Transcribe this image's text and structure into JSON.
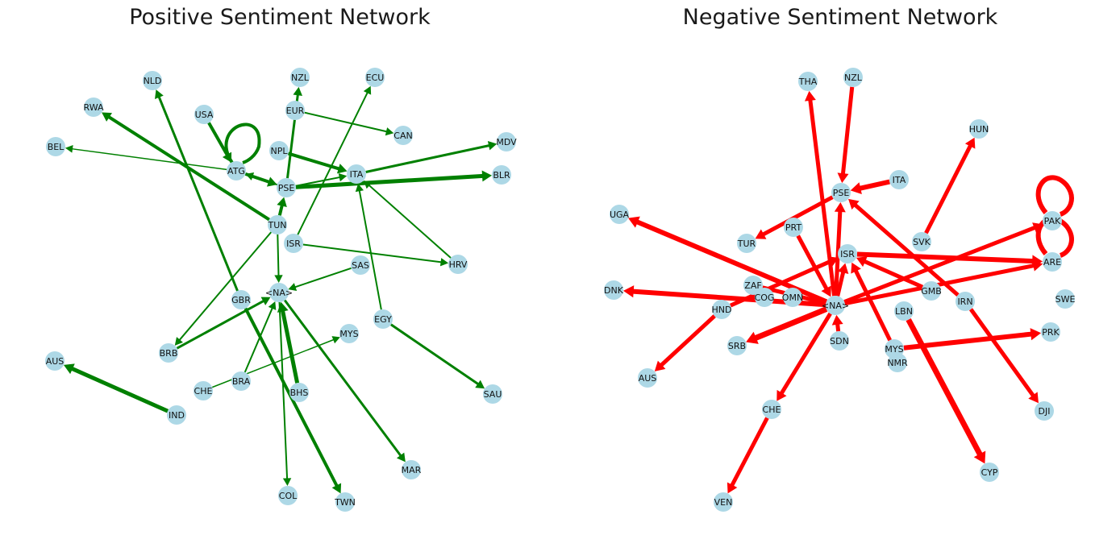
{
  "left": {
    "title": "Positive Sentiment Network",
    "color": "#008000",
    "node_fill": "#add8e6",
    "nodes": [
      {
        "id": "NLD"
      },
      {
        "id": "RWA"
      },
      {
        "id": "BEL"
      },
      {
        "id": "USA"
      },
      {
        "id": "NZL"
      },
      {
        "id": "ECU"
      },
      {
        "id": "EUR"
      },
      {
        "id": "CAN"
      },
      {
        "id": "MDV"
      },
      {
        "id": "NPL"
      },
      {
        "id": "ATG"
      },
      {
        "id": "ITA"
      },
      {
        "id": "BLR"
      },
      {
        "id": "PSE"
      },
      {
        "id": "TUN"
      },
      {
        "id": "ISR"
      },
      {
        "id": "HRV"
      },
      {
        "id": "SAS"
      },
      {
        "id": "<NA>"
      },
      {
        "id": "GBR"
      },
      {
        "id": "EGY"
      },
      {
        "id": "BRB"
      },
      {
        "id": "MYS"
      },
      {
        "id": "AUS"
      },
      {
        "id": "CHE"
      },
      {
        "id": "BRA"
      },
      {
        "id": "BHS"
      },
      {
        "id": "SAU"
      },
      {
        "id": "IND"
      },
      {
        "id": "MAR"
      },
      {
        "id": "COL"
      },
      {
        "id": "TWN"
      }
    ],
    "edges": [
      {
        "source": "USA",
        "target": "ATG",
        "weight": 4
      },
      {
        "source": "ATG",
        "target": "ATG",
        "weight": 4
      },
      {
        "source": "ATG",
        "target": "BEL",
        "weight": 1.5
      },
      {
        "source": "ATG",
        "target": "PSE",
        "weight": 4
      },
      {
        "source": "PSE",
        "target": "ATG",
        "weight": 2
      },
      {
        "source": "PSE",
        "target": "NZL",
        "weight": 3
      },
      {
        "source": "PSE",
        "target": "BLR",
        "weight": 5
      },
      {
        "source": "PSE",
        "target": "ITA",
        "weight": 2
      },
      {
        "source": "NPL",
        "target": "ITA",
        "weight": 4
      },
      {
        "source": "EUR",
        "target": "CAN",
        "weight": 2
      },
      {
        "source": "ITA",
        "target": "MDV",
        "weight": 3
      },
      {
        "source": "HRV",
        "target": "ITA",
        "weight": 2
      },
      {
        "source": "EGY",
        "target": "ITA",
        "weight": 2
      },
      {
        "source": "TUN",
        "target": "RWA",
        "weight": 4
      },
      {
        "source": "TUN",
        "target": "PSE",
        "weight": 4
      },
      {
        "source": "TUN",
        "target": "BRB",
        "weight": 2
      },
      {
        "source": "TUN",
        "target": "<NA>",
        "weight": 2
      },
      {
        "source": "ISR",
        "target": "ECU",
        "weight": 2
      },
      {
        "source": "ISR",
        "target": "HRV",
        "weight": 2
      },
      {
        "source": "GBR",
        "target": "NLD",
        "weight": 3
      },
      {
        "source": "GBR",
        "target": "TWN",
        "weight": 4
      },
      {
        "source": "SAS",
        "target": "<NA>",
        "weight": 2
      },
      {
        "source": "BRB",
        "target": "<NA>",
        "weight": 3
      },
      {
        "source": "BRA",
        "target": "<NA>",
        "weight": 2
      },
      {
        "source": "CHE",
        "target": "MYS",
        "weight": 1.5
      },
      {
        "source": "BHS",
        "target": "<NA>",
        "weight": 5
      },
      {
        "source": "<NA>",
        "target": "COL",
        "weight": 2
      },
      {
        "source": "<NA>",
        "target": "MAR",
        "weight": 3
      },
      {
        "source": "EGY",
        "target": "SAU",
        "weight": 3
      },
      {
        "source": "IND",
        "target": "AUS",
        "weight": 5
      }
    ]
  },
  "right": {
    "title": "Negative Sentiment Network",
    "color": "#ff0000",
    "node_fill": "#add8e6",
    "nodes": [
      {
        "id": "THA"
      },
      {
        "id": "NZL"
      },
      {
        "id": "HUN"
      },
      {
        "id": "ITA"
      },
      {
        "id": "PSE"
      },
      {
        "id": "UGA"
      },
      {
        "id": "PRT"
      },
      {
        "id": "SVK"
      },
      {
        "id": "PAK"
      },
      {
        "id": "TUR"
      },
      {
        "id": "ISR"
      },
      {
        "id": "ARE"
      },
      {
        "id": "ZAF"
      },
      {
        "id": "DNK"
      },
      {
        "id": "COG"
      },
      {
        "id": "OMN"
      },
      {
        "id": "<NA>"
      },
      {
        "id": "GMB"
      },
      {
        "id": "IRN"
      },
      {
        "id": "SWE"
      },
      {
        "id": "HND"
      },
      {
        "id": "LBN"
      },
      {
        "id": "PRK"
      },
      {
        "id": "SRB"
      },
      {
        "id": "SDN"
      },
      {
        "id": "MYS"
      },
      {
        "id": "NMR"
      },
      {
        "id": "AUS"
      },
      {
        "id": "CHE"
      },
      {
        "id": "DJI"
      },
      {
        "id": "CYP"
      },
      {
        "id": "VEN"
      }
    ],
    "edges": [
      {
        "source": "NZL",
        "target": "PSE",
        "weight": 5
      },
      {
        "source": "ITA",
        "target": "PSE",
        "weight": 6
      },
      {
        "source": "PSE",
        "target": "TUR",
        "weight": 5
      },
      {
        "source": "<NA>",
        "target": "THA",
        "weight": 5
      },
      {
        "source": "<NA>",
        "target": "UGA",
        "weight": 6
      },
      {
        "source": "<NA>",
        "target": "DNK",
        "weight": 6
      },
      {
        "source": "<NA>",
        "target": "SRB",
        "weight": 7
      },
      {
        "source": "<NA>",
        "target": "CHE",
        "weight": 5
      },
      {
        "source": "<NA>",
        "target": "PAK",
        "weight": 5
      },
      {
        "source": "<NA>",
        "target": "ARE",
        "weight": 5
      },
      {
        "source": "<NA>",
        "target": "ISR",
        "weight": 5
      },
      {
        "source": "<NA>",
        "target": "PSE",
        "weight": 5
      },
      {
        "source": "SVK",
        "target": "HUN",
        "weight": 5
      },
      {
        "source": "PAK",
        "target": "PAK",
        "weight": 6
      },
      {
        "source": "ARE",
        "target": "ARE",
        "weight": 6
      },
      {
        "source": "ISR",
        "target": "ARE",
        "weight": 6
      },
      {
        "source": "GMB",
        "target": "ISR",
        "weight": 5
      },
      {
        "source": "MYS",
        "target": "ISR",
        "weight": 5
      },
      {
        "source": "MYS",
        "target": "PRK",
        "weight": 6
      },
      {
        "source": "IRN",
        "target": "PSE",
        "weight": 5
      },
      {
        "source": "IRN",
        "target": "DJI",
        "weight": 5
      },
      {
        "source": "LBN",
        "target": "CYP",
        "weight": 7
      },
      {
        "source": "HND",
        "target": "AUS",
        "weight": 5
      },
      {
        "source": "HND",
        "target": "ISR",
        "weight": 5
      },
      {
        "source": "CHE",
        "target": "VEN",
        "weight": 5
      },
      {
        "source": "PRT",
        "target": "<NA>",
        "weight": 5
      },
      {
        "source": "SDN",
        "target": "<NA>",
        "weight": 5
      },
      {
        "source": "ZAF",
        "target": "<NA>",
        "weight": 5
      }
    ]
  }
}
